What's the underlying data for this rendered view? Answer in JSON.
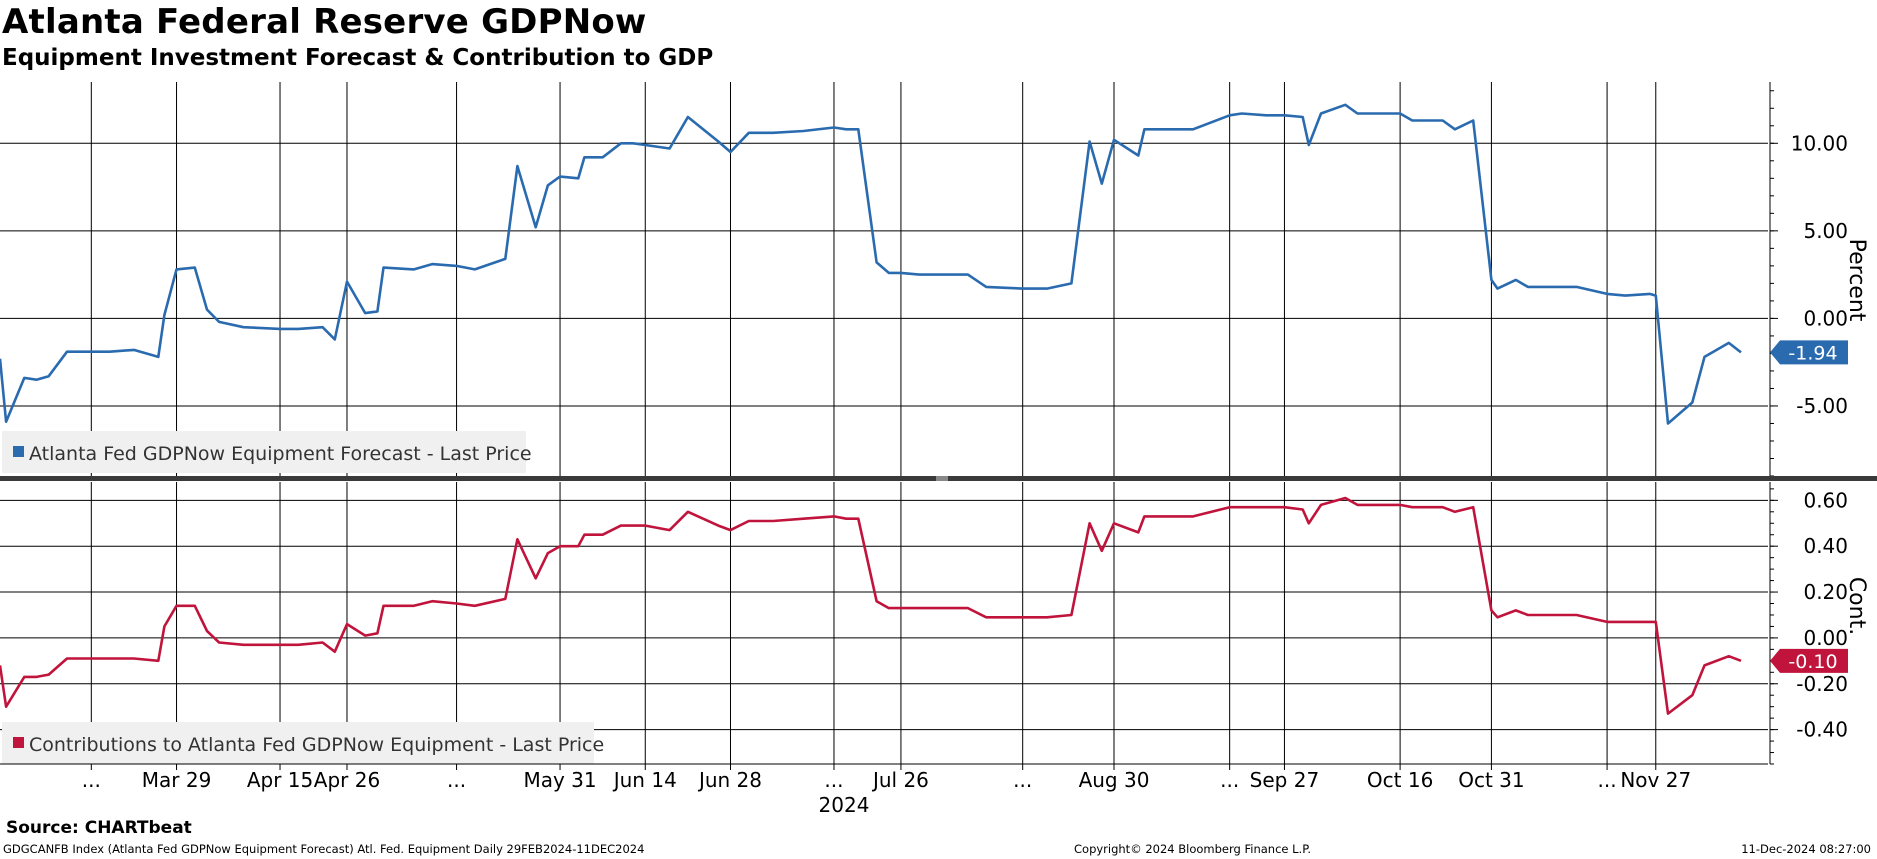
{
  "header": {
    "title": "Atlanta Federal Reserve GDPNow",
    "subtitle": "Equipment Investment Forecast & Contribution to GDP"
  },
  "footer": {
    "source": "Source: CHARTbeat",
    "left": "GDGCANFB Index (Atlanta Fed GDPNow Equipment Forecast) Atl. Fed. Equipment  Daily 29FEB2024-11DEC2024",
    "middle": "Copyright© 2024 Bloomberg Finance L.P.",
    "right": "11-Dec-2024 08:27:00"
  },
  "chart_data": [
    {
      "type": "line",
      "ylabel": "Percent",
      "ylim": [
        -9,
        13.5
      ],
      "yticks": [
        10.0,
        5.0,
        0.0,
        -5.0
      ],
      "ytick_labels": [
        "10.00",
        "5.00",
        "0.00",
        "-5.00"
      ],
      "grid": true,
      "legend_position": "bottom-left",
      "color": "#2a6bb0",
      "last_value_label": "-1.94",
      "series": [
        {
          "name": "Atlanta Fed GDPNow Equipment Forecast - Last Price",
          "x": [
            "2024-02-29",
            "2024-03-01",
            "2024-03-04",
            "2024-03-06",
            "2024-03-08",
            "2024-03-11",
            "2024-03-18",
            "2024-03-22",
            "2024-03-26",
            "2024-03-27",
            "2024-03-29",
            "2024-04-01",
            "2024-04-03",
            "2024-04-05",
            "2024-04-09",
            "2024-04-15",
            "2024-04-18",
            "2024-04-22",
            "2024-04-24",
            "2024-04-26",
            "2024-04-29",
            "2024-05-01",
            "2024-05-02",
            "2024-05-07",
            "2024-05-10",
            "2024-05-14",
            "2024-05-17",
            "2024-05-22",
            "2024-05-24",
            "2024-05-27",
            "2024-05-29",
            "2024-05-31",
            "2024-06-03",
            "2024-06-04",
            "2024-06-06",
            "2024-06-07",
            "2024-06-10",
            "2024-06-12",
            "2024-06-14",
            "2024-06-18",
            "2024-06-21",
            "2024-06-26",
            "2024-06-28",
            "2024-07-01",
            "2024-07-03",
            "2024-07-05",
            "2024-07-10",
            "2024-07-15",
            "2024-07-17",
            "2024-07-19",
            "2024-07-22",
            "2024-07-24",
            "2024-07-26",
            "2024-07-29",
            "2024-08-01",
            "2024-08-06",
            "2024-08-09",
            "2024-08-15",
            "2024-08-19",
            "2024-08-23",
            "2024-08-26",
            "2024-08-28",
            "2024-08-30",
            "2024-09-03",
            "2024-09-04",
            "2024-09-06",
            "2024-09-09",
            "2024-09-12",
            "2024-09-18",
            "2024-09-20",
            "2024-09-24",
            "2024-09-27",
            "2024-09-30",
            "2024-10-01",
            "2024-10-03",
            "2024-10-07",
            "2024-10-09",
            "2024-10-16",
            "2024-10-18",
            "2024-10-23",
            "2024-10-25",
            "2024-10-28",
            "2024-10-31",
            "2024-11-01",
            "2024-11-04",
            "2024-11-06",
            "2024-11-14",
            "2024-11-19",
            "2024-11-22",
            "2024-11-26",
            "2024-11-27",
            "2024-11-29",
            "2024-12-03",
            "2024-12-05",
            "2024-12-09",
            "2024-12-11"
          ],
          "values": [
            -2.3,
            -5.9,
            -3.4,
            -3.5,
            -3.3,
            -1.9,
            -1.9,
            -1.8,
            -2.2,
            0.2,
            2.8,
            2.9,
            0.5,
            -0.2,
            -0.5,
            -0.6,
            -0.6,
            -0.5,
            -1.2,
            2.1,
            0.3,
            0.4,
            2.9,
            2.8,
            3.1,
            3.0,
            2.8,
            3.4,
            8.7,
            5.2,
            7.6,
            8.1,
            8.0,
            9.2,
            9.2,
            9.2,
            10.0,
            10.0,
            9.9,
            9.7,
            11.5,
            10.1,
            9.5,
            10.6,
            10.6,
            10.6,
            10.7,
            10.9,
            10.8,
            10.8,
            3.2,
            2.6,
            2.6,
            2.5,
            2.5,
            2.5,
            1.8,
            1.7,
            1.7,
            2.0,
            10.1,
            7.7,
            10.2,
            9.3,
            10.8,
            10.8,
            10.8,
            10.8,
            11.6,
            11.7,
            11.6,
            11.6,
            11.5,
            9.9,
            11.7,
            12.2,
            11.7,
            11.7,
            11.3,
            11.3,
            10.8,
            11.3,
            2.2,
            1.7,
            2.2,
            1.8,
            1.8,
            1.4,
            1.3,
            1.4,
            1.3,
            -6.0,
            -4.8,
            -2.2,
            -1.4,
            -1.94
          ]
        }
      ]
    },
    {
      "type": "line",
      "ylabel": "Cont.",
      "ylim": [
        -0.55,
        0.68
      ],
      "yticks": [
        0.6,
        0.4,
        0.2,
        0.0,
        -0.2,
        -0.4
      ],
      "ytick_labels": [
        "0.60",
        "0.40",
        "0.20",
        "0.00",
        "-0.20",
        "-0.40"
      ],
      "grid": true,
      "legend_position": "bottom-left",
      "color": "#c0143c",
      "last_value_label": "-0.10",
      "series": [
        {
          "name": "Contributions to Atlanta Fed GDPNow Equipment - Last Price",
          "x": [
            "2024-02-29",
            "2024-03-01",
            "2024-03-04",
            "2024-03-06",
            "2024-03-08",
            "2024-03-11",
            "2024-03-18",
            "2024-03-22",
            "2024-03-26",
            "2024-03-27",
            "2024-03-29",
            "2024-04-01",
            "2024-04-03",
            "2024-04-05",
            "2024-04-09",
            "2024-04-15",
            "2024-04-18",
            "2024-04-22",
            "2024-04-24",
            "2024-04-26",
            "2024-04-29",
            "2024-05-01",
            "2024-05-02",
            "2024-05-07",
            "2024-05-10",
            "2024-05-14",
            "2024-05-17",
            "2024-05-22",
            "2024-05-24",
            "2024-05-27",
            "2024-05-29",
            "2024-05-31",
            "2024-06-03",
            "2024-06-04",
            "2024-06-06",
            "2024-06-07",
            "2024-06-10",
            "2024-06-12",
            "2024-06-14",
            "2024-06-18",
            "2024-06-21",
            "2024-06-26",
            "2024-06-28",
            "2024-07-01",
            "2024-07-03",
            "2024-07-05",
            "2024-07-10",
            "2024-07-15",
            "2024-07-17",
            "2024-07-19",
            "2024-07-22",
            "2024-07-24",
            "2024-07-26",
            "2024-07-29",
            "2024-08-01",
            "2024-08-06",
            "2024-08-09",
            "2024-08-15",
            "2024-08-19",
            "2024-08-23",
            "2024-08-26",
            "2024-08-28",
            "2024-08-30",
            "2024-09-03",
            "2024-09-04",
            "2024-09-06",
            "2024-09-09",
            "2024-09-12",
            "2024-09-18",
            "2024-09-20",
            "2024-09-24",
            "2024-09-27",
            "2024-09-30",
            "2024-10-01",
            "2024-10-03",
            "2024-10-07",
            "2024-10-09",
            "2024-10-16",
            "2024-10-18",
            "2024-10-23",
            "2024-10-25",
            "2024-10-28",
            "2024-10-31",
            "2024-11-01",
            "2024-11-04",
            "2024-11-06",
            "2024-11-14",
            "2024-11-19",
            "2024-11-22",
            "2024-11-26",
            "2024-11-27",
            "2024-11-29",
            "2024-12-03",
            "2024-12-05",
            "2024-12-09",
            "2024-12-11"
          ],
          "values": [
            -0.12,
            -0.3,
            -0.17,
            -0.17,
            -0.16,
            -0.09,
            -0.09,
            -0.09,
            -0.1,
            0.05,
            0.14,
            0.14,
            0.03,
            -0.02,
            -0.03,
            -0.03,
            -0.03,
            -0.02,
            -0.06,
            0.06,
            0.01,
            0.02,
            0.14,
            0.14,
            0.16,
            0.15,
            0.14,
            0.17,
            0.43,
            0.26,
            0.37,
            0.4,
            0.4,
            0.45,
            0.45,
            0.45,
            0.49,
            0.49,
            0.49,
            0.47,
            0.55,
            0.49,
            0.47,
            0.51,
            0.51,
            0.51,
            0.52,
            0.53,
            0.52,
            0.52,
            0.16,
            0.13,
            0.13,
            0.13,
            0.13,
            0.13,
            0.09,
            0.09,
            0.09,
            0.1,
            0.5,
            0.38,
            0.5,
            0.46,
            0.53,
            0.53,
            0.53,
            0.53,
            0.57,
            0.57,
            0.57,
            0.57,
            0.56,
            0.5,
            0.58,
            0.61,
            0.58,
            0.58,
            0.57,
            0.57,
            0.55,
            0.57,
            0.12,
            0.09,
            0.12,
            0.1,
            0.1,
            0.07,
            0.07,
            0.07,
            0.07,
            -0.33,
            -0.25,
            -0.12,
            -0.08,
            -0.1
          ]
        }
      ]
    },
    {
      "type": "axis",
      "x_tick_labels": [
        "...",
        "Mar 29",
        "Apr 15",
        "Apr 26",
        "...",
        "May 31",
        "Jun 14",
        "Jun 28",
        "...",
        "Jul 26",
        "...",
        "Aug 30",
        "...",
        "Sep 27",
        "Oct 16",
        "Oct 31",
        "...",
        "Nov 27"
      ],
      "x_tick_dates": [
        "2024-03-15",
        "2024-03-29",
        "2024-04-15",
        "2024-04-26",
        "2024-05-14",
        "2024-05-31",
        "2024-06-14",
        "2024-06-28",
        "2024-07-15",
        "2024-07-26",
        "2024-08-15",
        "2024-08-30",
        "2024-09-18",
        "2024-09-27",
        "2024-10-16",
        "2024-10-31",
        "2024-11-19",
        "2024-11-27"
      ],
      "year_label": "2024",
      "year_label_date": "2024-07-15"
    }
  ]
}
